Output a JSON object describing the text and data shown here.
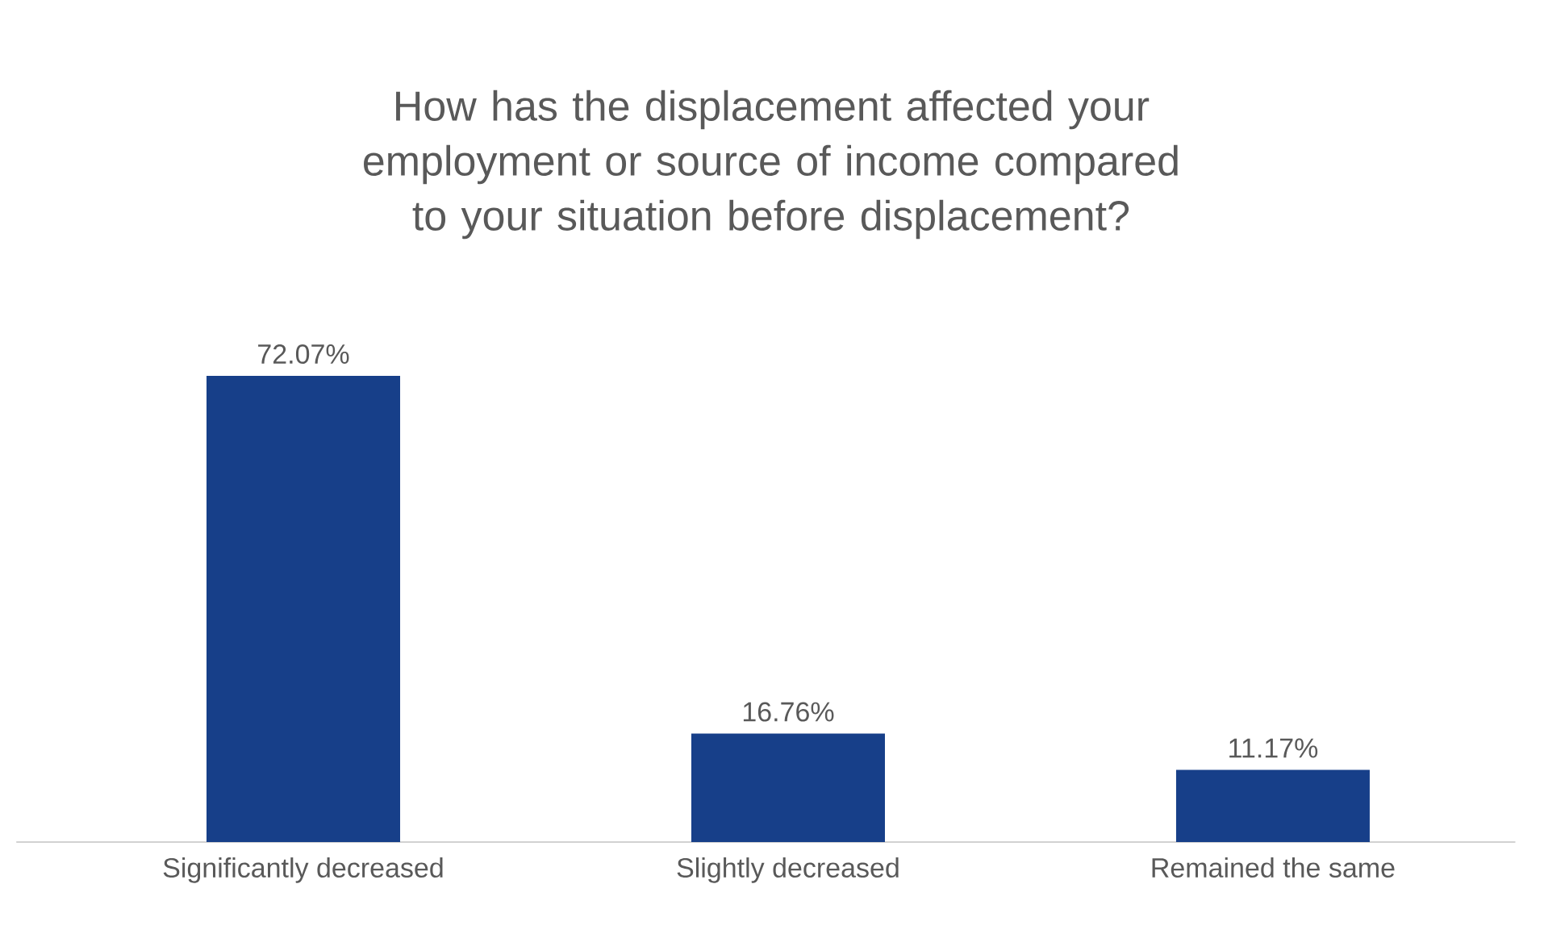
{
  "chart_data": {
    "type": "bar",
    "title": "How has the displacement affected your employment or source of income compared to your situation before displacement?",
    "categories": [
      "Significantly decreased",
      "Slightly decreased",
      "Remained the same"
    ],
    "values": [
      72.07,
      16.76,
      11.17
    ],
    "value_labels": [
      "72.07%",
      "16.76%",
      "11.17%"
    ],
    "color": "#173f89"
  }
}
